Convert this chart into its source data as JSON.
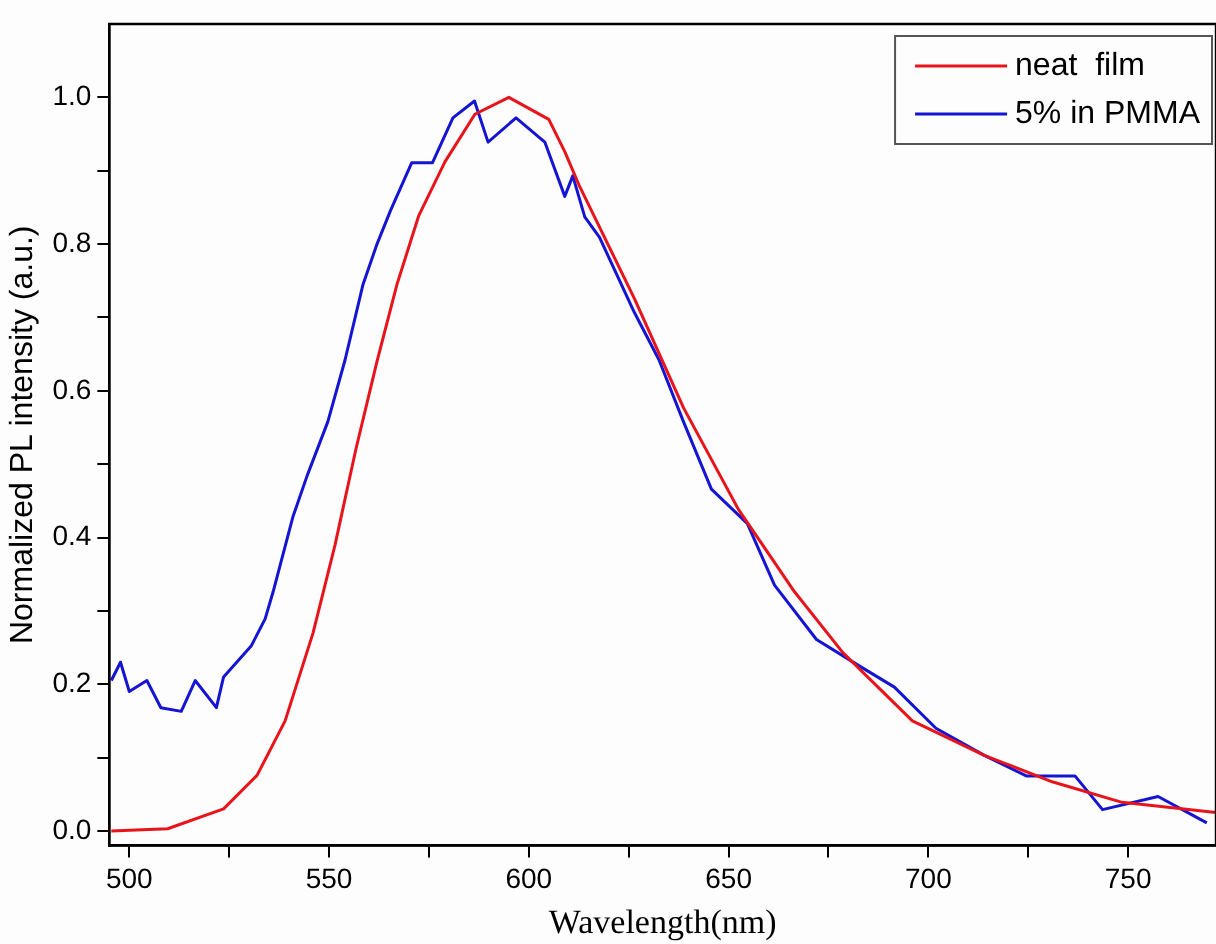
{
  "chart_data": {
    "type": "line",
    "xlabel": "Wavelength(nm)",
    "ylabel": "Normalized PL intensity (a.u.)",
    "xlim": [
      495,
      772
    ],
    "ylim": [
      -0.02,
      1.1
    ],
    "xticks": [
      500,
      {
        "value": 525,
        "label": null
      },
      550,
      {
        "value": 575,
        "label": null
      },
      600,
      {
        "value": 625,
        "label": null
      },
      650,
      {
        "value": 675,
        "label": null
      },
      700,
      {
        "value": 725,
        "label": null
      },
      750
    ],
    "yticks": [
      {
        "value": 0,
        "label": "0.0"
      },
      {
        "value": 0.1,
        "label": null
      },
      0.2,
      {
        "value": 0.3,
        "label": null
      },
      0.4,
      {
        "value": 0.5,
        "label": null
      },
      0.6,
      {
        "value": 0.7,
        "label": null
      },
      0.8,
      {
        "value": 0.9,
        "label": null
      },
      {
        "value": 1.0,
        "label": "1.0"
      }
    ],
    "legend": "top right",
    "marker": "none",
    "line_style": "solid",
    "series": [
      {
        "name": "neat  film",
        "color": "#e8141c",
        "x": [
          495.5,
          509.6,
          523.6,
          532,
          539,
          546,
          551.5,
          556.7,
          562,
          567,
          572.4,
          579,
          586.5,
          595,
          605,
          609,
          612.6,
          626.4,
          638.7,
          652.5,
          666.5,
          678.6,
          696,
          714,
          731,
          748.5,
          772
        ],
        "values": [
          0,
          0.003,
          0.03,
          0.076,
          0.15,
          0.27,
          0.39,
          0.52,
          0.64,
          0.745,
          0.838,
          0.912,
          0.977,
          1.0,
          0.97,
          0.926,
          0.88,
          0.726,
          0.577,
          0.438,
          0.326,
          0.243,
          0.15,
          0.103,
          0.067,
          0.039,
          0.025
        ]
      },
      {
        "name": "5% in PMMA",
        "color": "#1414d2",
        "x": [
          495.5,
          497.8,
          500,
          504.4,
          507.9,
          513,
          516.5,
          521.8,
          523.6,
          530.5,
          534,
          536,
          541,
          544.5,
          549.7,
          554,
          558.5,
          562,
          565.4,
          570.7,
          575.9,
          581,
          586.4,
          589.8,
          596.8,
          604,
          609,
          611,
          614,
          617.7,
          626.4,
          632.6,
          638.7,
          645.7,
          654.7,
          661.5,
          672,
          683,
          691.5,
          701.9,
          714,
          724.5,
          736.7,
          743.6,
          757.5,
          769.7
        ],
        "values": [
          0.205,
          0.23,
          0.19,
          0.205,
          0.168,
          0.163,
          0.205,
          0.168,
          0.21,
          0.252,
          0.289,
          0.326,
          0.429,
          0.484,
          0.558,
          0.642,
          0.745,
          0.8,
          0.846,
          0.911,
          0.911,
          0.972,
          0.995,
          0.939,
          0.972,
          0.939,
          0.865,
          0.893,
          0.837,
          0.809,
          0.707,
          0.642,
          0.558,
          0.466,
          0.419,
          0.335,
          0.261,
          0.224,
          0.196,
          0.14,
          0.103,
          0.075,
          0.075,
          0.029,
          0.047,
          0.011
        ]
      }
    ]
  }
}
